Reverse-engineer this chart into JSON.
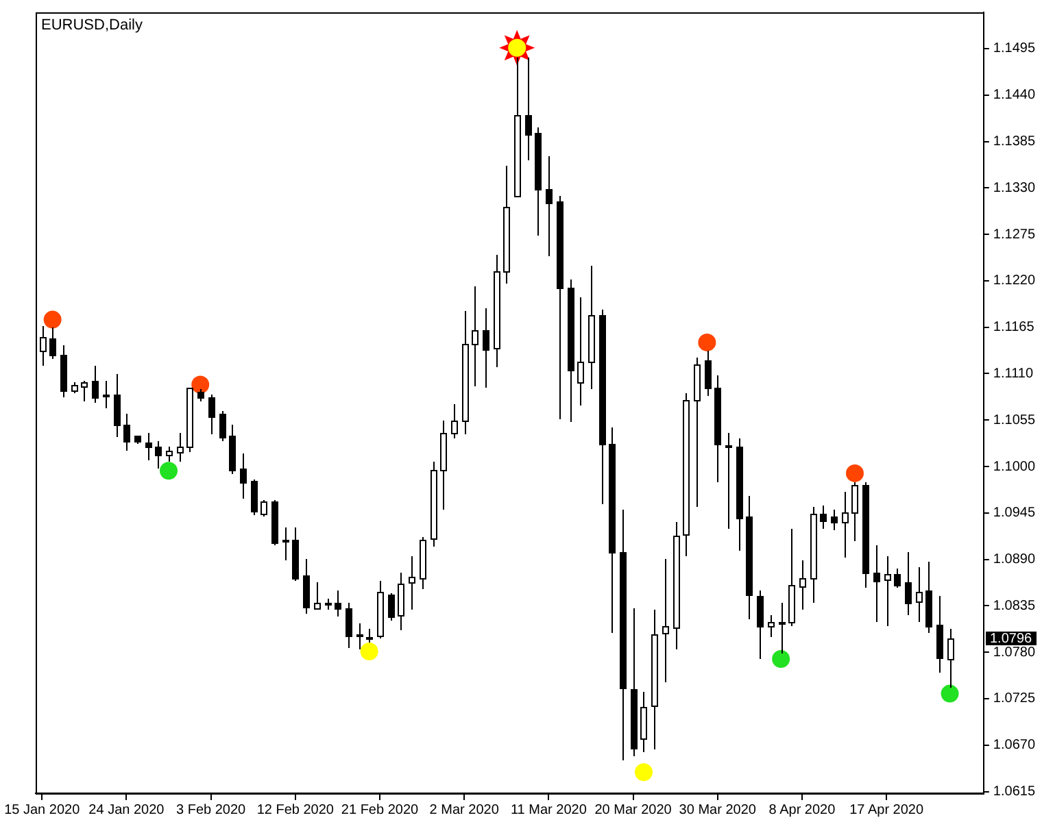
{
  "chart_data": {
    "type": "candlestick",
    "title": "EURUSD,Daily",
    "categories": [
      "15 Jan 2020",
      null,
      null,
      null,
      null,
      null,
      null,
      null,
      "24 Jan 2020",
      null,
      null,
      null,
      null,
      null,
      null,
      null,
      "3 Feb 2020",
      null,
      null,
      null,
      null,
      null,
      null,
      null,
      "12 Feb 2020",
      null,
      null,
      null,
      null,
      null,
      null,
      null,
      "21 Feb 2020",
      null,
      null,
      null,
      null,
      null,
      null,
      null,
      "2 Mar 2020",
      null,
      null,
      null,
      null,
      null,
      null,
      null,
      "11 Mar 2020",
      null,
      null,
      null,
      null,
      null,
      null,
      null,
      "20 Mar 2020",
      null,
      null,
      null,
      null,
      null,
      null,
      null,
      "30 Mar 2020",
      null,
      null,
      null,
      null,
      null,
      null,
      null,
      "8 Apr 2020",
      null,
      null,
      null,
      null,
      null,
      null,
      null,
      "17 Apr 2020",
      null,
      null,
      null,
      null,
      null,
      null
    ],
    "ohlc": [
      [
        1.1136,
        1.1167,
        1.1121,
        1.1153
      ],
      [
        1.1151,
        1.1164,
        1.1129,
        1.1132
      ],
      [
        1.1133,
        1.1143,
        1.1083,
        1.109
      ],
      [
        1.109,
        1.11,
        1.1088,
        1.1096
      ],
      [
        1.1095,
        1.1101,
        1.1078,
        1.11
      ],
      [
        1.1101,
        1.112,
        1.1077,
        1.1082
      ],
      [
        1.1086,
        1.1101,
        1.1071,
        1.1084
      ],
      [
        1.1086,
        1.111,
        1.1036,
        1.105
      ],
      [
        1.1049,
        1.1062,
        1.102,
        1.1029
      ],
      [
        1.1036,
        1.1037,
        1.1028,
        1.1029
      ],
      [
        1.1028,
        1.1039,
        1.1009,
        1.1023
      ],
      [
        1.1024,
        1.103,
        1.0999,
        1.1015
      ],
      [
        1.1013,
        1.1023,
        1.1007,
        1.1018
      ],
      [
        1.1018,
        1.104,
        1.1008,
        1.1024
      ],
      [
        1.1024,
        1.1094,
        1.1018,
        1.1093
      ],
      [
        1.1088,
        1.1091,
        1.1079,
        1.1082
      ],
      [
        1.1082,
        1.1085,
        1.1039,
        1.1059
      ],
      [
        1.1062,
        1.1065,
        1.1032,
        1.1035
      ],
      [
        1.1036,
        1.1049,
        1.0993,
        1.0996
      ],
      [
        1.0997,
        1.1015,
        1.0964,
        1.0981
      ],
      [
        1.0983,
        1.0985,
        1.0944,
        1.0947
      ],
      [
        1.0944,
        1.096,
        1.0942,
        1.0958
      ],
      [
        1.0959,
        1.096,
        1.0908,
        1.091
      ],
      [
        1.0913,
        1.0928,
        1.0891,
        1.0911
      ],
      [
        1.0913,
        1.0928,
        1.0866,
        1.0868
      ],
      [
        1.0871,
        1.089,
        1.0828,
        1.0833
      ],
      [
        1.0833,
        1.0863,
        1.0833,
        1.0839
      ],
      [
        1.0838,
        1.0844,
        1.0832,
        1.0839
      ],
      [
        1.0839,
        1.0853,
        1.0824,
        1.0832
      ],
      [
        1.0832,
        1.0839,
        1.0787,
        1.0799
      ],
      [
        1.08,
        1.0815,
        1.0785,
        1.0801
      ],
      [
        1.0797,
        1.0808,
        1.0793,
        1.0798
      ],
      [
        1.0799,
        1.0865,
        1.0798,
        1.0851
      ],
      [
        1.0849,
        1.085,
        1.0819,
        1.0823
      ],
      [
        1.0823,
        1.0874,
        1.0807,
        1.0861
      ],
      [
        1.0863,
        1.0893,
        1.0832,
        1.087
      ],
      [
        1.0868,
        1.0917,
        1.0856,
        1.0913
      ],
      [
        1.0915,
        1.1005,
        1.0906,
        1.0996
      ],
      [
        1.0995,
        1.1054,
        1.095,
        1.1039
      ],
      [
        1.104,
        1.1074,
        1.1035,
        1.1054
      ],
      [
        1.1054,
        1.1185,
        1.1039,
        1.1145
      ],
      [
        1.1145,
        1.1214,
        1.1097,
        1.1161
      ],
      [
        1.1161,
        1.1188,
        1.1095,
        1.1139
      ],
      [
        1.114,
        1.1251,
        1.112,
        1.1231
      ],
      [
        1.1231,
        1.1356,
        1.1218,
        1.1307
      ],
      [
        1.132,
        1.1484,
        1.132,
        1.1416
      ],
      [
        1.1417,
        1.1484,
        1.1364,
        1.1394
      ],
      [
        1.1395,
        1.1402,
        1.1275,
        1.1328
      ],
      [
        1.1328,
        1.1368,
        1.125,
        1.1312
      ],
      [
        1.1314,
        1.132,
        1.1057,
        1.1212
      ],
      [
        1.1212,
        1.1222,
        1.1055,
        1.1114
      ],
      [
        1.11,
        1.12,
        1.1074,
        1.1124
      ],
      [
        1.1124,
        1.1237,
        1.1094,
        1.1179
      ],
      [
        1.1179,
        1.1186,
        1.0957,
        1.1027
      ],
      [
        1.1027,
        1.1046,
        1.0804,
        1.0898
      ],
      [
        1.0898,
        1.0949,
        1.0653,
        1.0737
      ],
      [
        1.0736,
        1.0832,
        1.0659,
        1.0667
      ],
      [
        1.0678,
        1.0733,
        1.0664,
        1.0715
      ],
      [
        1.0716,
        1.083,
        1.0667,
        1.0801
      ],
      [
        1.0803,
        1.089,
        1.0746,
        1.0811
      ],
      [
        1.0809,
        1.0934,
        1.0785,
        1.0918
      ],
      [
        1.092,
        1.1087,
        1.0896,
        1.1079
      ],
      [
        1.1079,
        1.1129,
        1.0954,
        1.1121
      ],
      [
        1.1126,
        1.1137,
        1.1085,
        1.1093
      ],
      [
        1.1094,
        1.1108,
        1.0983,
        1.1027
      ],
      [
        1.1026,
        1.104,
        1.0928,
        1.1024
      ],
      [
        1.1024,
        1.1034,
        1.0902,
        1.094
      ],
      [
        1.094,
        1.0965,
        1.082,
        1.0847
      ],
      [
        1.0847,
        1.0853,
        1.0774,
        1.0811
      ],
      [
        1.0811,
        1.0824,
        1.08,
        1.0816
      ],
      [
        1.0815,
        1.0838,
        1.078,
        1.0816
      ],
      [
        1.0816,
        1.0926,
        1.0813,
        1.086
      ],
      [
        1.0859,
        1.0889,
        1.0832,
        1.0868
      ],
      [
        1.0867,
        1.0952,
        1.0841,
        1.0944
      ],
      [
        1.0944,
        1.0953,
        1.0928,
        1.0936
      ],
      [
        1.0941,
        1.0949,
        1.0926,
        1.0934
      ],
      [
        1.0934,
        1.097,
        1.0894,
        1.0946
      ],
      [
        1.0946,
        1.0981,
        1.0914,
        1.0978
      ],
      [
        1.0978,
        1.0981,
        1.0858,
        1.0874
      ],
      [
        1.0875,
        1.0907,
        1.0817,
        1.0866
      ],
      [
        1.0867,
        1.0894,
        1.0812,
        1.0873
      ],
      [
        1.0873,
        1.0879,
        1.0858,
        1.086
      ],
      [
        1.0863,
        1.0898,
        1.0825,
        1.0839
      ],
      [
        1.0839,
        1.0881,
        1.0817,
        1.0851
      ],
      [
        1.0853,
        1.0887,
        1.0804,
        1.0811
      ],
      [
        1.0812,
        1.0847,
        1.0758,
        1.0773
      ],
      [
        1.0772,
        1.0807,
        1.0739,
        1.0796
      ]
    ],
    "color": "#000000",
    "series": [
      {
        "type": "scatter",
        "marker": "circle",
        "color": "#ff4500",
        "values": [
          null,
          1.1174,
          null,
          null,
          null,
          null,
          null,
          null,
          null,
          null,
          null,
          null,
          null,
          null,
          null,
          1.1097,
          null,
          null,
          null,
          null,
          null,
          null,
          null,
          null,
          null,
          null,
          null,
          null,
          null,
          null,
          null,
          null,
          null,
          null,
          null,
          null,
          null,
          null,
          null,
          null,
          null,
          null,
          null,
          null,
          null,
          null,
          null,
          null,
          null,
          null,
          null,
          null,
          null,
          null,
          null,
          null,
          null,
          null,
          null,
          null,
          null,
          null,
          null,
          1.1147,
          null,
          null,
          null,
          null,
          null,
          null,
          null,
          null,
          null,
          null,
          null,
          null,
          null,
          1.0992,
          null,
          null,
          null,
          null,
          null,
          null,
          null,
          null,
          null
        ]
      },
      {
        "type": "scatter",
        "marker": "circle",
        "color": "#22e022",
        "values": [
          null,
          null,
          null,
          null,
          null,
          null,
          null,
          null,
          null,
          null,
          null,
          null,
          1.0995,
          null,
          null,
          null,
          null,
          null,
          null,
          null,
          null,
          null,
          null,
          null,
          null,
          null,
          null,
          null,
          null,
          null,
          null,
          null,
          null,
          null,
          null,
          null,
          null,
          null,
          null,
          null,
          null,
          null,
          null,
          null,
          null,
          null,
          null,
          null,
          null,
          null,
          null,
          null,
          null,
          null,
          null,
          null,
          null,
          null,
          null,
          null,
          null,
          null,
          null,
          null,
          null,
          null,
          null,
          null,
          null,
          null,
          1.0772,
          null,
          null,
          null,
          null,
          null,
          null,
          null,
          null,
          null,
          null,
          null,
          null,
          null,
          null,
          null,
          1.0731
        ]
      },
      {
        "type": "scatter",
        "marker": "circle",
        "color": "#ffff00",
        "values": [
          null,
          null,
          null,
          null,
          null,
          null,
          null,
          null,
          null,
          null,
          null,
          null,
          null,
          null,
          null,
          null,
          null,
          null,
          null,
          null,
          null,
          null,
          null,
          null,
          null,
          null,
          null,
          null,
          null,
          null,
          null,
          1.0781,
          null,
          null,
          null,
          null,
          null,
          null,
          null,
          null,
          null,
          null,
          null,
          null,
          null,
          1.1496,
          null,
          null,
          null,
          null,
          null,
          null,
          null,
          null,
          null,
          null,
          null,
          1.0638,
          null,
          null,
          null,
          null,
          null,
          null,
          null,
          null,
          null,
          null,
          null,
          null,
          null,
          null,
          null,
          null,
          null,
          null,
          null,
          null,
          null,
          null,
          null,
          null,
          null,
          null,
          null,
          null,
          null
        ]
      },
      {
        "type": "scatter",
        "marker": "star",
        "color": "#ff0000",
        "values": [
          null,
          null,
          null,
          null,
          null,
          null,
          null,
          null,
          null,
          null,
          null,
          null,
          null,
          null,
          null,
          null,
          null,
          null,
          null,
          null,
          null,
          null,
          null,
          null,
          null,
          null,
          null,
          null,
          null,
          null,
          null,
          null,
          null,
          null,
          null,
          null,
          null,
          null,
          null,
          null,
          null,
          null,
          null,
          null,
          null,
          1.1496,
          null,
          null,
          null,
          null,
          null,
          null,
          null,
          null,
          null,
          null,
          null,
          null,
          null,
          null,
          null,
          null,
          null,
          null,
          null,
          null,
          null,
          null,
          null,
          null,
          null,
          null,
          null,
          null,
          null,
          null,
          null,
          null,
          null,
          null,
          null,
          null,
          null,
          null,
          null,
          null,
          null
        ]
      }
    ],
    "ylim": [
      1.0613,
      1.1538
    ],
    "yticks": [
      1.0615,
      {
        "value": 1.067,
        "label": "1.0670"
      },
      1.0725,
      {
        "value": 1.078,
        "label": "1.0780"
      },
      1.0835,
      {
        "value": 1.089,
        "label": "1.0890"
      },
      1.0945,
      {
        "value": 1.1,
        "label": "1.1000"
      },
      1.1055,
      {
        "value": 1.111,
        "label": "1.1110"
      },
      1.1165,
      {
        "value": 1.122,
        "label": "1.1220"
      },
      1.1275,
      {
        "value": 1.133,
        "label": "1.1330"
      },
      1.1385,
      {
        "value": 1.144,
        "label": "1.1440"
      },
      1.1495
    ],
    "annotations": [
      "1.0796"
    ],
    "grid": false,
    "legend": false
  }
}
